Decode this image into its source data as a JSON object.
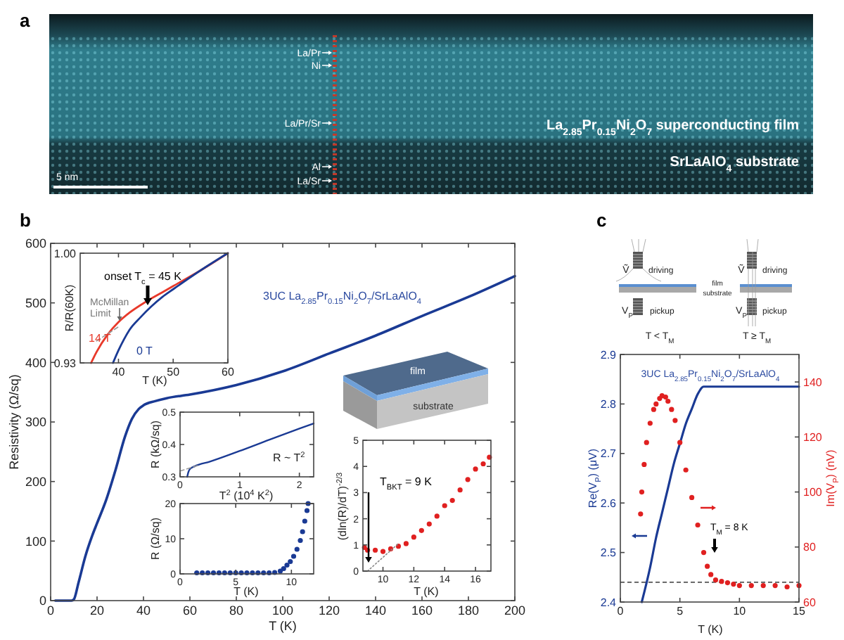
{
  "chart_data": [
    {
      "type": "other",
      "annotations": [
        "a",
        "La/Pr",
        "Ni",
        "La/Pr/Sr",
        "Al",
        "La/Sr",
        "5 nm",
        "La$_{2.85}$Pr$_{0.15}$Ni$_{2}$O$_{7}$ superconducting film",
        "SrLaAlO$_{4}$ substrate"
      ]
    },
    {
      "type": "line",
      "xlabel": "T (K)",
      "ylabel": "Resistivity (Ω/sq)",
      "xlim": [
        0,
        200
      ],
      "ylim": [
        0,
        600
      ],
      "xticks": [
        0,
        20,
        40,
        60,
        80,
        100,
        120,
        140,
        160,
        180,
        200
      ],
      "yticks": [
        0,
        100,
        200,
        300,
        400,
        500,
        600
      ],
      "annotations": [
        "b",
        "3UC La$_{2.85}$Pr$_{0.15}$Ni$_{2}$O$_{7}$/SrLaAlO$_{4}$",
        "film",
        "substrate"
      ],
      "series": [
        {
          "color": "#1a3a94",
          "x": [
            2,
            9,
            10,
            12,
            15,
            18,
            20,
            24,
            28,
            32,
            35,
            38,
            40,
            45,
            50,
            60,
            80,
            100,
            120,
            140,
            160,
            180,
            200
          ],
          "values": [
            0,
            0,
            2,
            30,
            75,
            110,
            130,
            170,
            220,
            275,
            305,
            322,
            328,
            335,
            340,
            346,
            362,
            385,
            415,
            445,
            478,
            510,
            545
          ]
        }
      ]
    },
    {
      "type": "line",
      "xlabel": "T (K)",
      "ylabel": "R/R(60K)",
      "xlim": [
        33,
        60
      ],
      "ylim": [
        0.93,
        1.0
      ],
      "xticks": [
        40,
        50,
        60
      ],
      "yticks": [
        0.93,
        {
          "value": 1,
          "label": "1.00"
        }
      ],
      "annotations": [
        "onset T$_{c}$ = 45 K",
        "McMillan Limit"
      ],
      "series": [
        {
          "name": "14 T",
          "color": "#e8392a",
          "x": [
            35,
            36,
            38,
            40,
            42,
            45,
            48,
            50,
            55,
            60
          ],
          "values": [
            0.93,
            0.937,
            0.948,
            0.956,
            0.962,
            0.969,
            0.975,
            0.979,
            0.989,
            1.0
          ]
        },
        {
          "name": "0 T",
          "color": "#1a3a94",
          "x": [
            39,
            40,
            41,
            42,
            44,
            46,
            48,
            50,
            55,
            60
          ],
          "values": [
            0.93,
            0.938,
            0.945,
            0.951,
            0.959,
            0.966,
            0.972,
            0.977,
            0.989,
            1.0
          ]
        },
        {
          "color": "#999999",
          "line_style": "dashed",
          "x": [
            36,
            40
          ],
          "values": [
            0.944,
            0.953
          ]
        }
      ]
    },
    {
      "type": "line",
      "xlabel": "T$^{2}$ (10$^{4}$ K$^{2}$)",
      "ylabel": "R (kΩ/sq)",
      "xlim": [
        0,
        2.24
      ],
      "ylim": [
        0.3,
        0.5
      ],
      "xticks": [
        0,
        1,
        2
      ],
      "yticks": [
        0.3,
        0.4,
        0.5
      ],
      "annotations": [
        "R ~ T$^{2}$"
      ],
      "series": [
        {
          "color": "#1a3a94",
          "x": [
            0.12,
            0.14,
            0.17,
            0.25,
            0.5,
            1,
            1.5,
            2,
            2.24
          ],
          "values": [
            0.3,
            0.315,
            0.325,
            0.333,
            0.347,
            0.38,
            0.415,
            0.449,
            0.465
          ]
        },
        {
          "color": "#999999",
          "line_style": "dashed",
          "x": [
            0,
            0.3
          ],
          "values": [
            0.318,
            0.335
          ]
        }
      ]
    },
    {
      "type": "scatter",
      "marker": "circle",
      "xlabel": "T (K)",
      "ylabel": "R (Ω/sq)",
      "xlim": [
        0,
        12
      ],
      "ylim": [
        0,
        20
      ],
      "xticks": [
        0,
        5,
        10
      ],
      "yticks": [
        0,
        10,
        20
      ],
      "series": [
        {
          "color": "#1a3a94",
          "x": [
            1.5,
            2,
            2.5,
            3,
            3.5,
            4,
            4.5,
            5,
            5.5,
            6,
            6.5,
            7,
            7.5,
            8,
            8.5,
            9,
            9.3,
            9.6,
            9.9,
            10.2,
            10.5,
            10.8,
            11,
            11.2,
            11.4,
            11.5
          ],
          "values": [
            0.3,
            0.3,
            0.3,
            0.3,
            0.3,
            0.3,
            0.3,
            0.3,
            0.3,
            0.3,
            0.3,
            0.3,
            0.3,
            0.3,
            0.4,
            0.8,
            1.5,
            2.5,
            3.5,
            5,
            7,
            9.5,
            12,
            15,
            18,
            20
          ]
        }
      ]
    },
    {
      "type": "scatter",
      "xlabel": "T (K)",
      "ylabel": "(dln(R)/dT)$^{-2/3}$",
      "xlim": [
        8.7,
        17
      ],
      "ylim": [
        0,
        5
      ],
      "xticks": [
        10,
        12,
        14,
        16
      ],
      "yticks": [
        0,
        1,
        2,
        3,
        4,
        5
      ],
      "annotations": [
        "T$_{BKT}$ = 9 K"
      ],
      "series": [
        {
          "marker": "circle",
          "color": "#e02020",
          "x": [
            8.8,
            9,
            9.5,
            10,
            10.5,
            11,
            11.5,
            12,
            12.5,
            13,
            13.5,
            14,
            14.5,
            15,
            15.5,
            16,
            16.5,
            16.9
          ],
          "values": [
            0.9,
            0.8,
            0.8,
            0.75,
            0.85,
            0.95,
            1.05,
            1.3,
            1.55,
            1.8,
            2.1,
            2.5,
            2.7,
            3.1,
            3.5,
            3.9,
            4.1,
            4.35
          ]
        },
        {
          "type": "line",
          "color": "#888888",
          "line_style": "dotted",
          "x": [
            9,
            11
          ],
          "values": [
            0,
            1.05
          ]
        }
      ]
    },
    {
      "type": "line",
      "xlabel": "T (K)",
      "ylabel": "Re(V$_{P}$) (μV)",
      "y2label": "Im(V$_{P}$) (nV)",
      "xlim": [
        0,
        15
      ],
      "ylim": [
        2.4,
        2.9
      ],
      "y2lim": [
        60,
        150
      ],
      "xticks": [
        0,
        5,
        10,
        15
      ],
      "yticks": [
        2.4,
        2.5,
        2.6,
        2.7,
        2.8,
        2.9
      ],
      "y2ticks": [
        60,
        80,
        100,
        120,
        140
      ],
      "ref_lines": [
        {
          "axis": "y",
          "value": 2.44,
          "color": "#555555",
          "line_style": "dashed"
        }
      ],
      "annotations": [
        "c",
        "3UC La$_{2.85}$Pr$_{0.15}$Ni$_{2}$O$_{7}$/SrLaAlO$_{4}$",
        "T$_{M}$ = 8 K",
        "Ṽ",
        "driving",
        "film",
        "substrate",
        "V$_{P}$",
        "pickup",
        "T < T$_{M}$",
        "Ṽ",
        "driving",
        "V$_{P}$",
        "pickup",
        "T ≥ T$_{M}$"
      ],
      "series": [
        {
          "color": "#1a3a94",
          "x": [
            1.8,
            2.5,
            3,
            3.5,
            4,
            4.5,
            5,
            5.5,
            6,
            6.5,
            7,
            8,
            10,
            12,
            15
          ],
          "values": [
            2.4,
            2.47,
            2.53,
            2.58,
            2.63,
            2.68,
            2.72,
            2.76,
            2.79,
            2.82,
            2.835,
            2.835,
            2.835,
            2.835,
            2.835
          ]
        },
        {
          "type": "scatter",
          "marker": "circle",
          "axis": "y2",
          "color": "#e02020",
          "x": [
            1.7,
            1.8,
            2,
            2.2,
            2.5,
            2.8,
            3,
            3.3,
            3.5,
            3.8,
            4,
            4.3,
            4.6,
            5,
            5.5,
            6,
            6.5,
            7,
            7.3,
            7.6,
            8,
            8.5,
            9,
            9.5,
            10,
            11,
            12,
            13,
            14,
            15
          ],
          "values": [
            92,
            100,
            110,
            118,
            125,
            130,
            132,
            134,
            135,
            134.5,
            133,
            130,
            126,
            118,
            108,
            98,
            88,
            78,
            73,
            70,
            68,
            67.5,
            67,
            66.5,
            66,
            66,
            66,
            66,
            65.5,
            66
          ]
        }
      ]
    }
  ]
}
